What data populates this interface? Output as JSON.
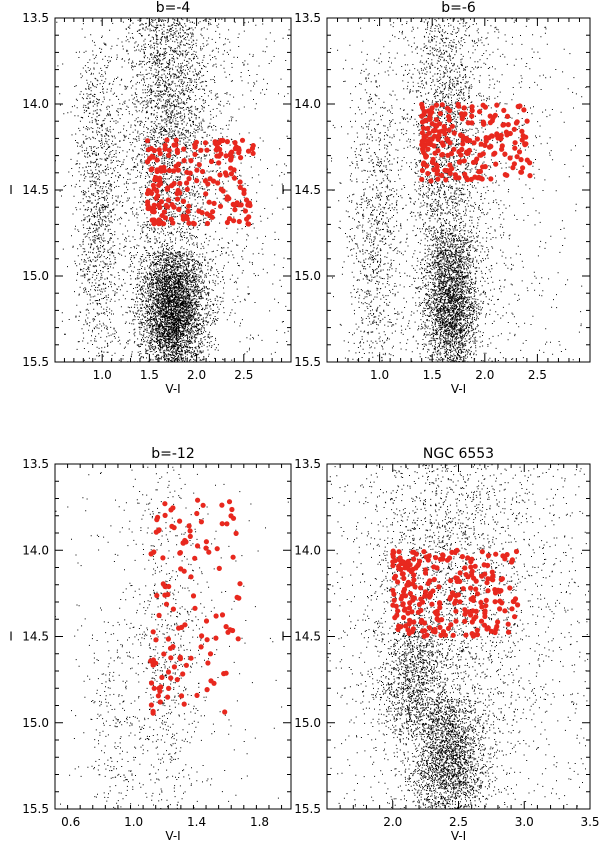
{
  "chart_data": [
    {
      "type": "scatter",
      "title": "b=-4",
      "xlabel": "V-I",
      "ylabel": "I",
      "xlim": [
        0.5,
        3.0
      ],
      "ylim": [
        15.5,
        13.5
      ],
      "x_ticks": [
        1.0,
        1.5,
        2.0,
        2.5
      ],
      "x_tick_labels": [
        "1.0",
        "1.5",
        "2.0",
        "2.5"
      ],
      "y_ticks": [
        13.5,
        14.0,
        14.5,
        15.0,
        15.5
      ],
      "y_tick_labels": [
        "13.5",
        "14.0",
        "14.5",
        "15.0",
        "15.5"
      ],
      "series": [
        {
          "role": "field",
          "color": "#000000",
          "approx_count": 9000,
          "components": [
            {
              "x_mean": 1.75,
              "x_sd": 0.17,
              "y_mean": 15.2,
              "y_sd": 0.2,
              "weight": 0.44,
              "y_range": [
                14.85,
                15.5
              ]
            },
            {
              "x_mean": 1.7,
              "x_sd": 0.22,
              "y_mean": 14.0,
              "y_sd": 0.6,
              "weight": 0.26,
              "y_range": [
                13.5,
                15.5
              ]
            },
            {
              "x_mean": 0.95,
              "x_sd": 0.12,
              "y_mean": 14.6,
              "y_sd": 0.55,
              "weight": 0.12,
              "y_range": [
                13.6,
                15.5
              ]
            },
            {
              "x_mean": 1.8,
              "x_sd": 0.6,
              "y_mean": 14.5,
              "y_sd": 1.0,
              "weight": 0.18,
              "y_range": [
                13.5,
                15.5
              ]
            }
          ]
        },
        {
          "role": "red clump",
          "color": "#e8281e",
          "count": 210,
          "x_range": [
            1.48,
            2.6
          ],
          "y_range": [
            14.2,
            14.7
          ]
        }
      ]
    },
    {
      "type": "scatter",
      "title": "b=-6",
      "xlabel": "V-I",
      "ylabel": "I",
      "xlim": [
        0.5,
        3.0
      ],
      "ylim": [
        15.5,
        13.5
      ],
      "x_ticks": [
        1.0,
        1.5,
        2.0,
        2.5
      ],
      "x_tick_labels": [
        "1.0",
        "1.5",
        "2.0",
        "2.5"
      ],
      "y_ticks": [
        13.5,
        14.0,
        14.5,
        15.0,
        15.5
      ],
      "y_tick_labels": [
        "13.5",
        "14.0",
        "14.5",
        "15.0",
        "15.5"
      ],
      "series": [
        {
          "role": "field",
          "color": "#000000",
          "approx_count": 6500,
          "components": [
            {
              "x_mean": 1.68,
              "x_sd": 0.13,
              "y_mean": 15.15,
              "y_sd": 0.25,
              "weight": 0.4,
              "y_range": [
                14.7,
                15.5
              ]
            },
            {
              "x_mean": 1.62,
              "x_sd": 0.18,
              "y_mean": 14.2,
              "y_sd": 0.6,
              "weight": 0.28,
              "y_range": [
                13.5,
                15.5
              ]
            },
            {
              "x_mean": 0.95,
              "x_sd": 0.12,
              "y_mean": 14.8,
              "y_sd": 0.5,
              "weight": 0.12,
              "y_range": [
                13.7,
                15.5
              ]
            },
            {
              "x_mean": 1.7,
              "x_sd": 0.55,
              "y_mean": 14.5,
              "y_sd": 1.0,
              "weight": 0.2,
              "y_range": [
                13.5,
                15.5
              ]
            }
          ]
        },
        {
          "role": "red clump",
          "color": "#e8281e",
          "count": 230,
          "x_range": [
            1.4,
            2.45
          ],
          "y_range": [
            14.0,
            14.45
          ]
        }
      ]
    },
    {
      "type": "scatter",
      "title": "b=-12",
      "xlabel": "V-I",
      "ylabel": "I",
      "xlim": [
        0.5,
        2.0
      ],
      "ylim": [
        15.5,
        13.5
      ],
      "x_ticks": [
        0.6,
        1.0,
        1.4,
        1.8
      ],
      "x_tick_labels": [
        "0.6",
        "1.0",
        "1.4",
        "1.8"
      ],
      "y_ticks": [
        13.5,
        14.0,
        14.5,
        15.0,
        15.5
      ],
      "y_tick_labels": [
        "13.5",
        "14.0",
        "14.5",
        "15.0",
        "15.5"
      ],
      "series": [
        {
          "role": "field",
          "color": "#000000",
          "approx_count": 1100,
          "components": [
            {
              "x_mean": 1.2,
              "x_sd": 0.12,
              "y_mean": 14.6,
              "y_sd": 0.7,
              "weight": 0.5,
              "y_range": [
                13.5,
                15.5
              ]
            },
            {
              "x_mean": 0.88,
              "x_sd": 0.1,
              "y_mean": 15.0,
              "y_sd": 0.4,
              "weight": 0.2,
              "y_range": [
                14.3,
                15.5
              ]
            },
            {
              "x_mean": 1.2,
              "x_sd": 0.35,
              "y_mean": 14.5,
              "y_sd": 1.0,
              "weight": 0.3,
              "y_range": [
                13.5,
                15.5
              ]
            }
          ]
        },
        {
          "role": "red clump",
          "color": "#e8281e",
          "count": 120,
          "x_range": [
            1.1,
            1.68
          ],
          "y_range": [
            13.7,
            14.95
          ]
        }
      ]
    },
    {
      "type": "scatter",
      "title": "NGC 6553",
      "xlabel": "V-I",
      "ylabel": "I",
      "xlim": [
        1.5,
        3.5
      ],
      "ylim": [
        15.5,
        13.5
      ],
      "x_ticks": [
        2.0,
        2.5,
        3.0,
        3.5
      ],
      "x_tick_labels": [
        "2.0",
        "2.5",
        "3.0",
        "3.5"
      ],
      "y_ticks": [
        13.5,
        14.0,
        14.5,
        15.0,
        15.5
      ],
      "y_tick_labels": [
        "13.5",
        "14.0",
        "14.5",
        "15.0",
        "15.5"
      ],
      "series": [
        {
          "role": "field",
          "color": "#000000",
          "approx_count": 6500,
          "components": [
            {
              "x_mean": 2.42,
              "x_sd": 0.15,
              "y_mean": 15.2,
              "y_sd": 0.22,
              "weight": 0.35,
              "y_range": [
                14.85,
                15.5
              ]
            },
            {
              "x_mean": 2.15,
              "x_sd": 0.12,
              "y_mean": 14.75,
              "y_sd": 0.2,
              "weight": 0.15,
              "y_range": [
                14.4,
                15.1
              ]
            },
            {
              "x_mean": 2.4,
              "x_sd": 0.28,
              "y_mean": 14.2,
              "y_sd": 0.5,
              "weight": 0.2,
              "y_range": [
                13.5,
                15.0
              ]
            },
            {
              "x_mean": 2.5,
              "x_sd": 0.6,
              "y_mean": 14.4,
              "y_sd": 1.0,
              "weight": 0.3,
              "y_range": [
                13.5,
                15.5
              ]
            }
          ]
        },
        {
          "role": "red clump",
          "color": "#e8281e",
          "count": 260,
          "x_range": [
            2.0,
            2.95
          ],
          "y_range": [
            14.0,
            14.5
          ]
        }
      ]
    }
  ]
}
